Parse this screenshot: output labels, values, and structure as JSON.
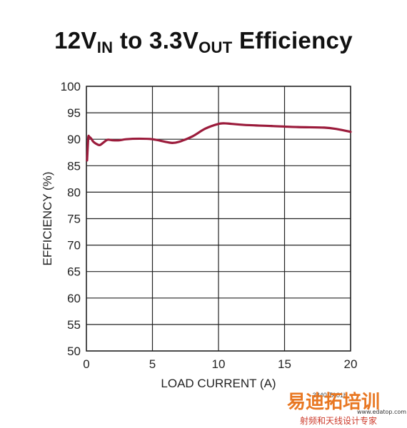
{
  "chart_data": {
    "type": "line",
    "title": {
      "parts": [
        "12V",
        "IN",
        " to 3.3V",
        "OUT",
        " Efficiency"
      ]
    },
    "xlabel": "LOAD CURRENT (A)",
    "ylabel": "EFFICIENCY (%)",
    "xlim": [
      0,
      20
    ],
    "ylim": [
      50,
      100
    ],
    "xticks": [
      0,
      5,
      10,
      15,
      20
    ],
    "yticks": [
      50,
      55,
      60,
      65,
      70,
      75,
      80,
      85,
      90,
      95,
      100
    ],
    "grid": true,
    "series": [
      {
        "color": "#9b1b3b",
        "x": [
          0.05,
          0.1,
          0.15,
          0.2,
          0.3,
          0.4,
          0.5,
          0.7,
          1.0,
          1.3,
          1.6,
          2.0,
          2.5,
          3.0,
          4.0,
          5.0,
          6.0,
          6.5,
          7.0,
          8.0,
          9.0,
          10.0,
          10.5,
          11.0,
          12.0,
          14.0,
          16.0,
          18.0,
          19.0,
          20.0
        ],
        "y": [
          86.0,
          88.5,
          90.5,
          90.5,
          90.3,
          90.0,
          89.6,
          89.2,
          88.9,
          89.4,
          89.9,
          89.8,
          89.8,
          90.0,
          90.1,
          90.0,
          89.5,
          89.3,
          89.5,
          90.5,
          92.0,
          92.9,
          93.0,
          92.9,
          92.7,
          92.5,
          92.3,
          92.2,
          91.9,
          91.4
        ]
      }
    ]
  },
  "figure_id": "3840 TA01b",
  "watermark": {
    "chinese": "易迪拓培训",
    "subtitle": "射频和天线设计专家",
    "url": "www.edatop.com"
  }
}
